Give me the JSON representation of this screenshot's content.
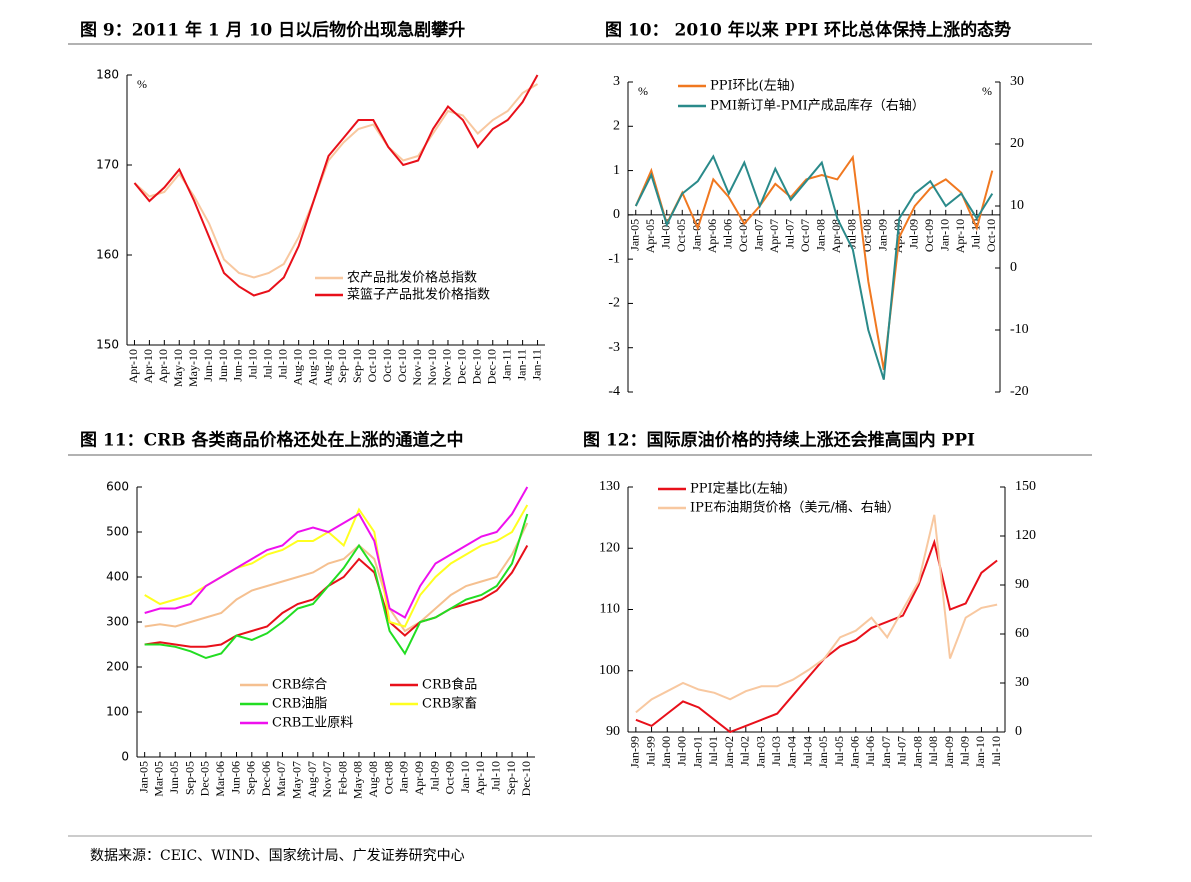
{
  "chart_data": [
    {
      "type": "line",
      "title": "图 9：2011 年 1 月 10 日以后物价出现急剧攀升",
      "y_label": "%",
      "categories": [
        "Apr-10",
        "Apr-10",
        "Apr-10",
        "May-10",
        "May-10",
        "Jun-10",
        "Jun-10",
        "Jun-10",
        "Jul-10",
        "Jul-10",
        "Jul-10",
        "Aug-10",
        "Aug-10",
        "Aug-10",
        "Sep-10",
        "Sep-10",
        "Oct-10",
        "Oct-10",
        "Oct-10",
        "Nov-10",
        "Nov-10",
        "Nov-10",
        "Dec-10",
        "Dec-10",
        "Dec-10",
        "Jan-11",
        "Jan-11",
        "Jan-11"
      ],
      "ylim": [
        150,
        180
      ],
      "yticks": [
        150,
        160,
        170,
        180
      ],
      "series": [
        {
          "name": "农产品批发价格总指数",
          "color": "#f8c8a0",
          "values": [
            168,
            166.5,
            167,
            169,
            166.5,
            163.5,
            159.5,
            158,
            157.5,
            158,
            159,
            162,
            166,
            170.5,
            172.5,
            174,
            174.5,
            172,
            170.5,
            171,
            173.5,
            176,
            175.5,
            173.5,
            175,
            176,
            178,
            179
          ]
        },
        {
          "name": "菜篮子产品批发价格指数",
          "color": "#e8101a",
          "values": [
            168,
            166,
            167.5,
            169.5,
            166,
            162,
            158,
            156.5,
            155.5,
            156,
            157.5,
            161,
            166,
            171,
            173,
            175,
            175,
            172,
            170,
            170.5,
            174,
            176.5,
            175,
            172,
            174,
            175,
            177,
            180
          ]
        }
      ]
    },
    {
      "type": "line",
      "title": "图 10： 2010 年以来 PPI 环比总体保持上涨的态势",
      "y_label": "%",
      "y2_label": "%",
      "categories": [
        "Jan-05",
        "Apr-05",
        "Jul-05",
        "Oct-05",
        "Jan-06",
        "Apr-06",
        "Jul-06",
        "Oct-06",
        "Jan-07",
        "Apr-07",
        "Jul-07",
        "Oct-07",
        "Jan-08",
        "Apr-08",
        "Jul-08",
        "Oct-08",
        "Jan-09",
        "Apr-09",
        "Jul-09",
        "Oct-09",
        "Jan-10",
        "Apr-10",
        "Jul-10",
        "Oct-10"
      ],
      "ylim": [
        -4,
        3
      ],
      "yticks": [
        -4,
        -3,
        -2,
        -1,
        0,
        1,
        2,
        3
      ],
      "y2lim": [
        -20,
        30
      ],
      "y2ticks": [
        -20,
        -10,
        0,
        10,
        20,
        30
      ],
      "series": [
        {
          "name": "PPI环比(左轴)",
          "color": "#f07820",
          "values": [
            0.2,
            1.0,
            -0.2,
            0.5,
            -0.3,
            0.8,
            0.4,
            -0.2,
            0.2,
            0.7,
            0.4,
            0.8,
            0.9,
            0.8,
            1.3,
            -1.5,
            -3.5,
            -0.5,
            0.2,
            0.6,
            0.8,
            0.5,
            -0.3,
            1.0
          ]
        },
        {
          "name": "PMI新订单-PMI产成品库存（右轴）",
          "color": "#2a8a8a",
          "axis": "y2",
          "values": [
            10,
            15,
            7,
            12,
            14,
            18,
            12,
            17,
            10,
            16,
            11,
            14,
            17,
            8,
            3,
            -10,
            -18,
            8,
            12,
            14,
            10,
            12,
            8,
            12
          ]
        }
      ]
    },
    {
      "type": "line",
      "title": "图 11：CRB 各类商品价格还处在上涨的通道之中",
      "categories": [
        "Jan-05",
        "Mar-05",
        "Jun-05",
        "Sep-05",
        "Dec-05",
        "Mar-06",
        "Jun-06",
        "Sep-06",
        "Dec-06",
        "Mar-07",
        "May-07",
        "Aug-07",
        "Nov-07",
        "Feb-08",
        "May-08",
        "Aug-08",
        "Oct-08",
        "Jan-09",
        "Apr-09",
        "Jul-09",
        "Oct-09",
        "Jan-10",
        "Apr-10",
        "Jul-10",
        "Sep-10",
        "Dec-10"
      ],
      "ylim": [
        0,
        600
      ],
      "yticks": [
        0,
        100,
        200,
        300,
        400,
        500,
        600
      ],
      "series": [
        {
          "name": "CRB综合",
          "color": "#f5c090",
          "values": [
            290,
            295,
            290,
            300,
            310,
            320,
            350,
            370,
            380,
            390,
            400,
            410,
            430,
            440,
            470,
            440,
            330,
            280,
            300,
            330,
            360,
            380,
            390,
            400,
            450,
            520
          ]
        },
        {
          "name": "CRB食品",
          "color": "#e8101a",
          "values": [
            250,
            255,
            250,
            245,
            245,
            250,
            270,
            280,
            290,
            320,
            340,
            350,
            380,
            400,
            440,
            410,
            300,
            270,
            300,
            310,
            330,
            340,
            350,
            370,
            410,
            470
          ]
        },
        {
          "name": "CRB油脂",
          "color": "#22dd22",
          "values": [
            250,
            250,
            245,
            235,
            220,
            230,
            270,
            260,
            275,
            300,
            330,
            340,
            380,
            420,
            470,
            420,
            280,
            230,
            300,
            310,
            330,
            350,
            360,
            380,
            430,
            540
          ]
        },
        {
          "name": "CRB家畜",
          "color": "#ffff20",
          "values": [
            360,
            340,
            350,
            360,
            380,
            400,
            420,
            430,
            450,
            460,
            480,
            480,
            500,
            470,
            550,
            500,
            300,
            290,
            360,
            400,
            430,
            450,
            470,
            480,
            500,
            560
          ]
        },
        {
          "name": "CRB工业原料",
          "color": "#ee10ee",
          "values": [
            320,
            330,
            330,
            340,
            380,
            400,
            420,
            440,
            460,
            470,
            500,
            510,
            500,
            520,
            540,
            480,
            330,
            310,
            380,
            430,
            450,
            470,
            490,
            500,
            540,
            600
          ]
        }
      ]
    },
    {
      "type": "line",
      "title": "图 12：国际原油价格的持续上涨还会推高国内 PPI",
      "categories": [
        "Jan-99",
        "Jul-99",
        "Jan-00",
        "Jul-00",
        "Jan-01",
        "Jul-01",
        "Jan-02",
        "Jul-02",
        "Jan-03",
        "Jul-03",
        "Jan-04",
        "Jul-04",
        "Jan-05",
        "Jul-05",
        "Jan-06",
        "Jul-06",
        "Jan-07",
        "Jul-07",
        "Jan-08",
        "Jul-08",
        "Jan-09",
        "Jul-09",
        "Jan-10",
        "Jul-10"
      ],
      "ylim": [
        90,
        130
      ],
      "yticks": [
        90,
        100,
        110,
        120,
        130
      ],
      "y2lim": [
        0,
        150
      ],
      "y2ticks": [
        0,
        30,
        60,
        90,
        120,
        150
      ],
      "series": [
        {
          "name": "PPI定基比(左轴)",
          "color": "#e8101a",
          "values": [
            92,
            91,
            93,
            95,
            94,
            92,
            90,
            91,
            92,
            93,
            96,
            99,
            102,
            104,
            105,
            107,
            108,
            109,
            114,
            121,
            110,
            111,
            116,
            118
          ]
        },
        {
          "name": "IPE布油期货价格（美元/桶、右轴）",
          "color": "#f8c8a0",
          "axis": "y2",
          "values": [
            12,
            20,
            25,
            30,
            26,
            24,
            20,
            25,
            28,
            28,
            32,
            38,
            45,
            58,
            62,
            70,
            58,
            75,
            92,
            133,
            45,
            70,
            76,
            78
          ]
        }
      ]
    }
  ],
  "source": "数据来源：CEIC、WIND、国家统计局、广发证券研究中心"
}
